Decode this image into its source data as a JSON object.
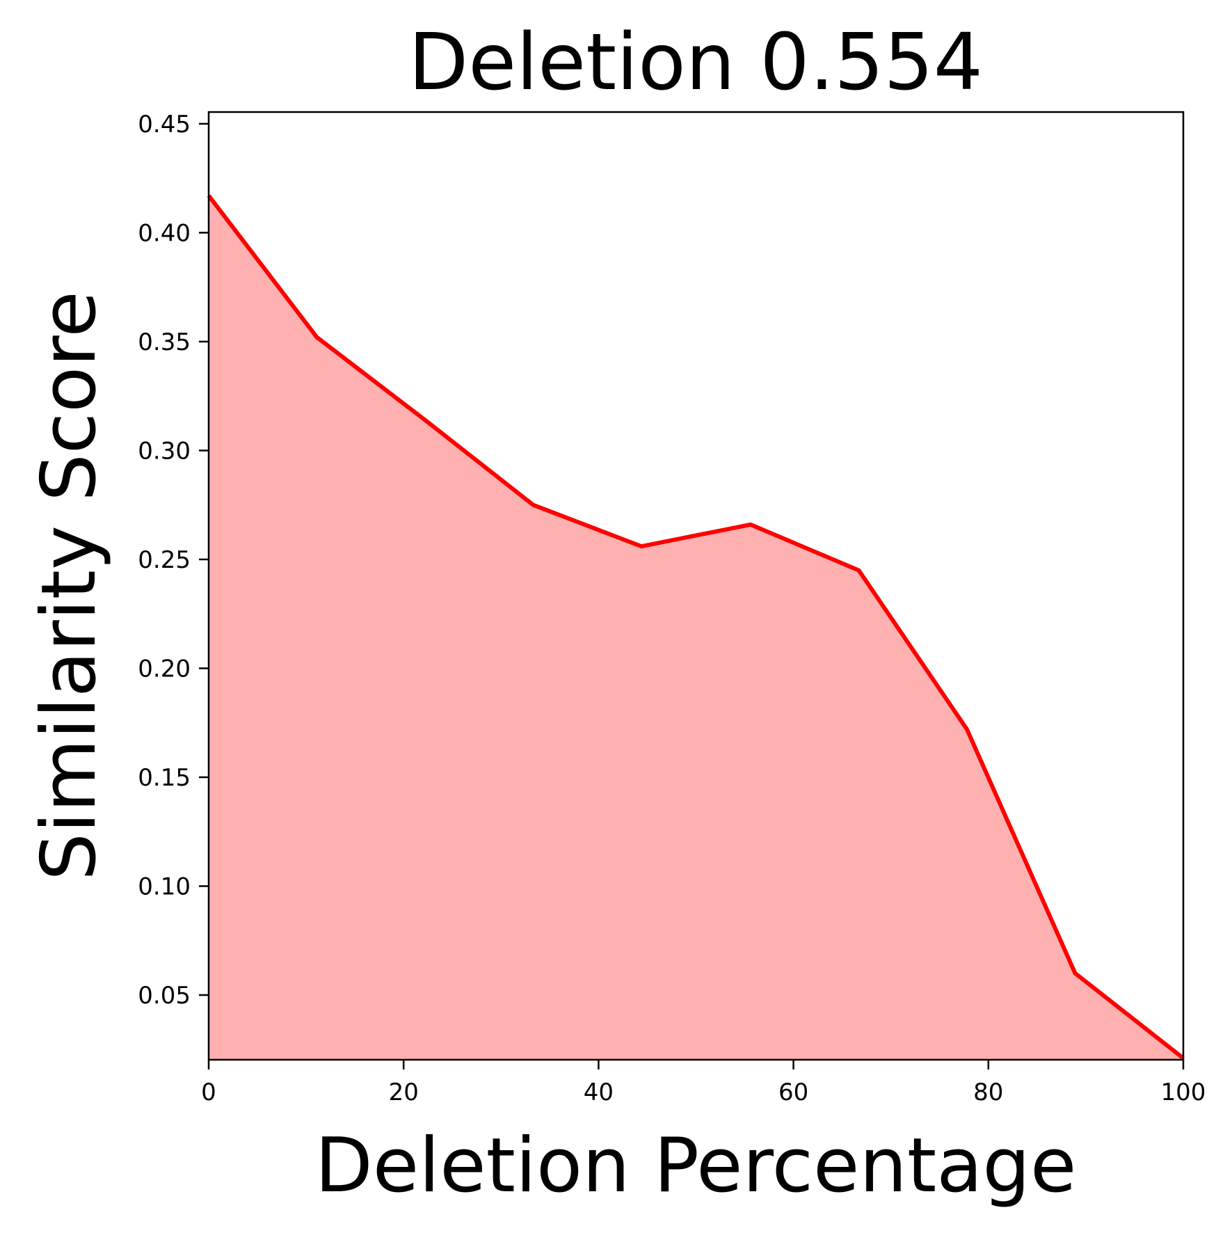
{
  "chart_data": {
    "type": "area",
    "title": "Deletion 0.554",
    "xlabel": "Deletion Percentage",
    "ylabel": "Similarity Score",
    "x": [
      0,
      11.1,
      22.2,
      33.3,
      44.4,
      55.6,
      66.7,
      77.8,
      88.9,
      100
    ],
    "series": [
      {
        "name": "Similarity Score",
        "values": [
          0.417,
          0.352,
          0.314,
          0.275,
          0.256,
          0.266,
          0.245,
          0.172,
          0.06,
          0.021
        ],
        "line_color": "#ff0000",
        "fill_color": "#ffb1b1"
      }
    ],
    "xlim": [
      0,
      100
    ],
    "ylim": [
      0.0203,
      0.4554
    ],
    "xticks": [
      0,
      20,
      40,
      60,
      80,
      100
    ],
    "xtick_labels": [
      "0",
      "20",
      "40",
      "60",
      "80",
      "100"
    ],
    "yticks": [
      0.05,
      0.1,
      0.15,
      0.2,
      0.25,
      0.3,
      0.35,
      0.4,
      0.45
    ],
    "ytick_labels": [
      "0.05",
      "0.10",
      "0.15",
      "0.20",
      "0.25",
      "0.30",
      "0.35",
      "0.40",
      "0.45"
    ],
    "grid": false,
    "legend": null
  }
}
